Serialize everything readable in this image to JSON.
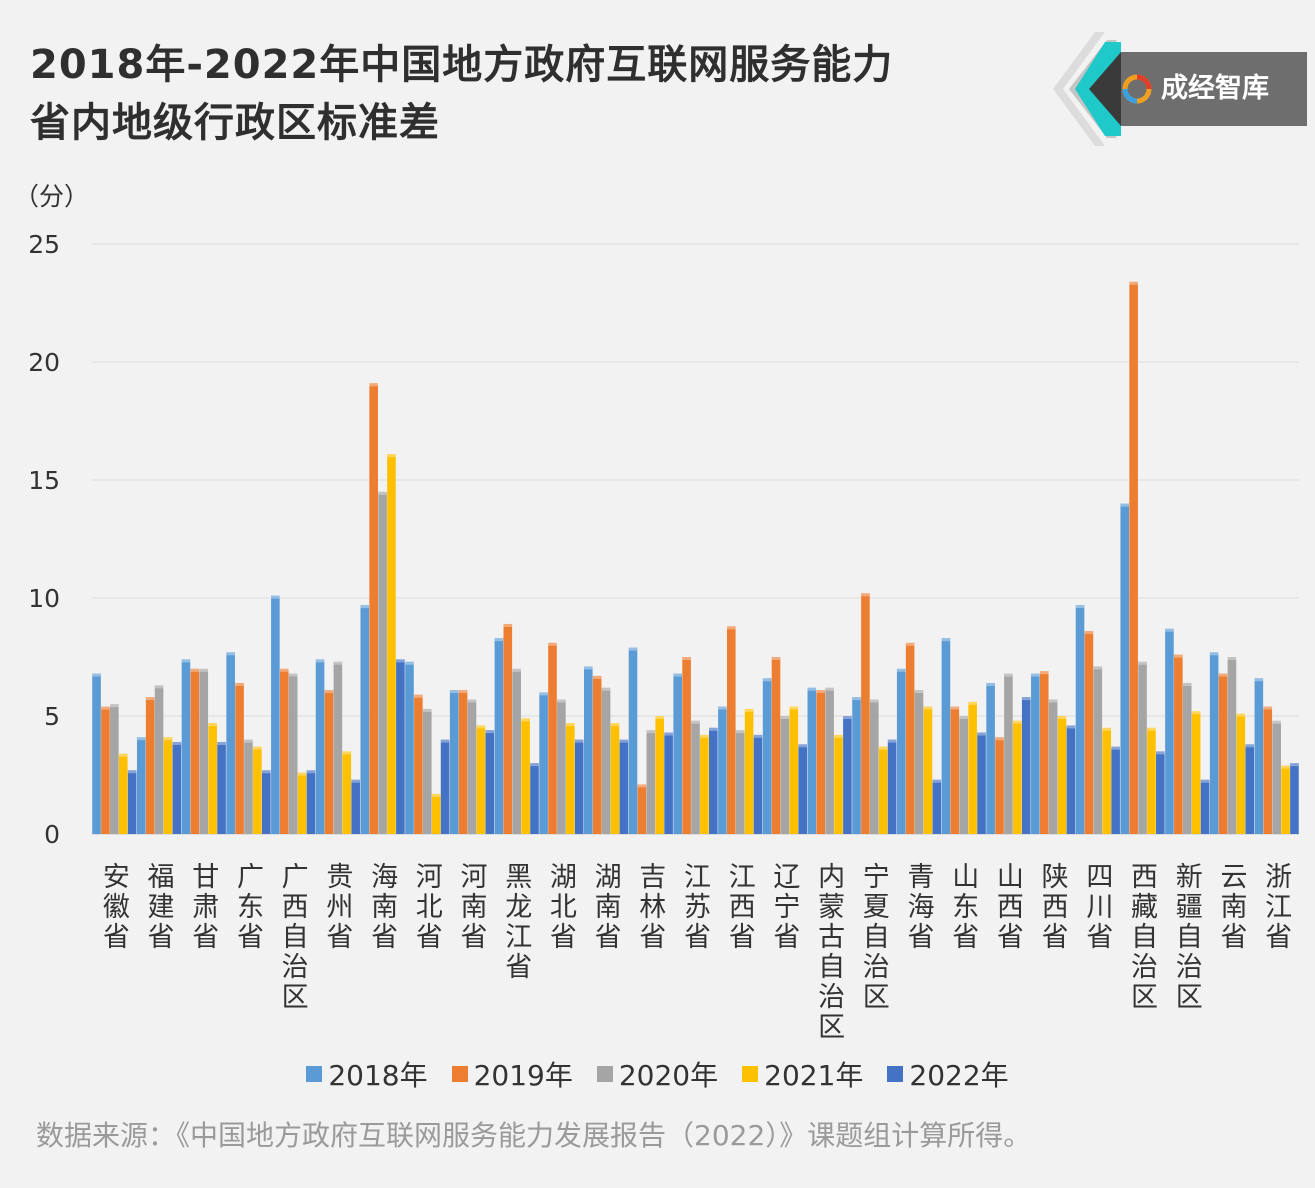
{
  "title_line1": "2018年-2022年中国地方政府互联网服务能力",
  "title_line2": "省内地级行政区标准差",
  "logo_text": "成经智库",
  "source": "数据来源：《中国地方政府互联网服务能力发展报告（2022）》课题组计算所得。",
  "chart_data": {
    "type": "bar",
    "title": "2018年-2022年中国地方政府互联网服务能力省内地级行政区标准差",
    "ylabel": "（分）",
    "xlabel": "",
    "ylim": [
      0,
      25
    ],
    "yticks": [
      0,
      5,
      10,
      15,
      20,
      25
    ],
    "grid": true,
    "legend_position": "bottom",
    "categories": [
      "安徽省",
      "福建省",
      "甘肃省",
      "广东省",
      "广西自治区",
      "贵州省",
      "海南省",
      "河北省",
      "河南省",
      "黑龙江省",
      "湖北省",
      "湖南省",
      "吉林省",
      "江苏省",
      "江西省",
      "辽宁省",
      "内蒙古自治区",
      "宁夏自治区",
      "青海省",
      "山东省",
      "山西省",
      "陕西省",
      "四川省",
      "西藏自治区",
      "新疆自治区",
      "云南省",
      "浙江省"
    ],
    "series": [
      {
        "name": "2018年",
        "color": "#5b9bd5",
        "values": [
          6.8,
          4.1,
          7.4,
          7.7,
          10.1,
          7.4,
          9.7,
          7.3,
          6.1,
          8.3,
          6.0,
          7.1,
          7.9,
          6.8,
          5.4,
          6.6,
          6.2,
          5.8,
          7.0,
          8.3,
          6.4,
          6.8,
          9.7,
          14.0,
          8.7,
          7.7,
          6.6
        ]
      },
      {
        "name": "2019年",
        "color": "#ed7d31",
        "values": [
          5.4,
          5.8,
          7.0,
          6.4,
          7.0,
          6.1,
          19.1,
          5.9,
          6.1,
          8.9,
          8.1,
          6.7,
          2.1,
          7.5,
          8.8,
          7.5,
          6.1,
          10.2,
          8.1,
          5.4,
          4.1,
          6.9,
          8.6,
          23.4,
          7.6,
          6.8,
          5.4
        ]
      },
      {
        "name": "2020年",
        "color": "#a5a5a5",
        "values": [
          5.5,
          6.3,
          7.0,
          4.0,
          6.8,
          7.3,
          14.5,
          5.3,
          5.7,
          7.0,
          5.7,
          6.2,
          4.4,
          4.8,
          4.4,
          5.0,
          6.2,
          5.7,
          6.1,
          5.0,
          6.8,
          5.7,
          7.1,
          7.3,
          6.4,
          7.5,
          4.8
        ]
      },
      {
        "name": "2021年",
        "color": "#ffc000",
        "values": [
          3.4,
          4.1,
          4.7,
          3.7,
          2.6,
          3.5,
          16.1,
          1.7,
          4.6,
          4.9,
          4.7,
          4.7,
          5.0,
          4.2,
          5.3,
          5.4,
          4.2,
          3.7,
          5.4,
          5.6,
          4.8,
          5.0,
          4.5,
          4.5,
          5.2,
          5.1,
          2.9
        ]
      },
      {
        "name": "2022年",
        "color": "#4472c4",
        "values": [
          2.7,
          3.9,
          3.9,
          2.7,
          2.7,
          2.3,
          7.4,
          4.0,
          4.4,
          3.0,
          4.0,
          4.0,
          4.3,
          4.5,
          4.2,
          3.8,
          5.0,
          4.0,
          2.3,
          4.3,
          5.8,
          4.6,
          3.7,
          3.5,
          2.3,
          3.8,
          3.0
        ]
      }
    ]
  }
}
